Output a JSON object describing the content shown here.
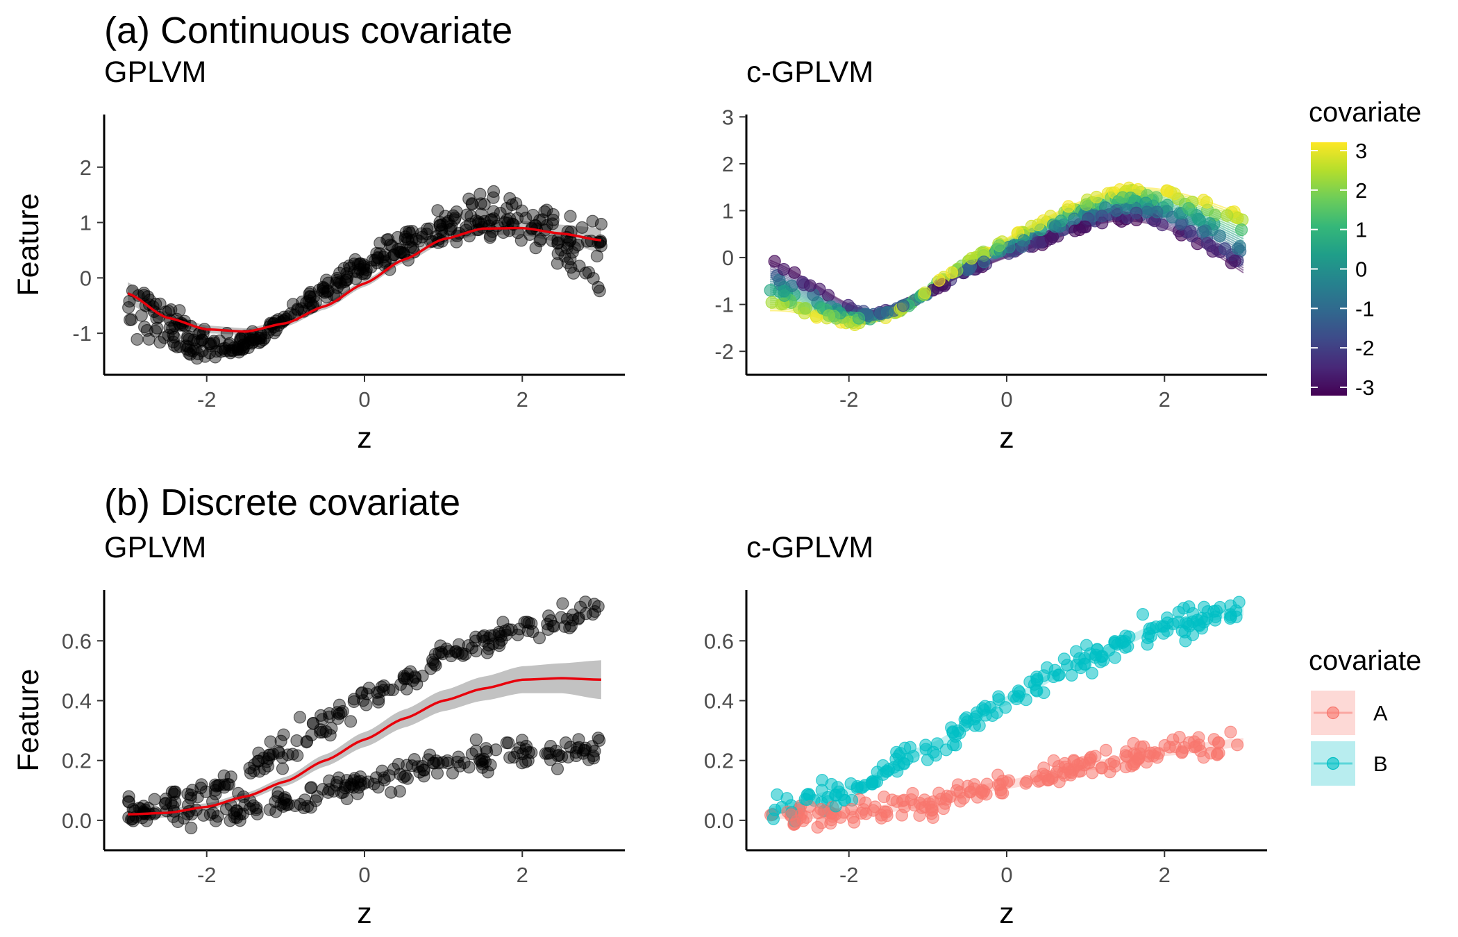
{
  "sections": [
    {
      "title": "(a) Continuous covariate"
    },
    {
      "title": "(b) Discrete covariate"
    }
  ],
  "colors": {
    "points_black": "#000000",
    "fit_red": "#e8000b",
    "ribbon_gray": "#999999",
    "group_A": "#F8766D",
    "group_B": "#00BFC4",
    "viridis": [
      "#440154",
      "#482878",
      "#3E4A89",
      "#31688E",
      "#26828E",
      "#1F9E89",
      "#35B779",
      "#6DCD59",
      "#B4DE2C",
      "#FDE725"
    ]
  },
  "chart_data": [
    {
      "id": "a-gplvm",
      "type": "scatter",
      "title": "GPLVM",
      "xlabel": "z",
      "ylabel": "Feature",
      "xlim": [
        -3.3,
        3.3
      ],
      "ylim": [
        -1.75,
        2.95
      ],
      "xticks": [
        -2,
        0,
        2
      ],
      "yticks": [
        -1,
        0,
        1,
        2
      ],
      "x_range": [
        -3,
        3
      ],
      "n_points": 400,
      "fit_x": [
        -3,
        -2.5,
        -2,
        -1.5,
        -1,
        -0.5,
        0,
        0.5,
        1,
        1.5,
        2,
        2.5,
        3
      ],
      "fit_y": [
        -0.28,
        -0.72,
        -0.93,
        -0.97,
        -0.82,
        -0.51,
        -0.1,
        0.33,
        0.7,
        0.89,
        0.9,
        0.8,
        0.68
      ],
      "ribbon_halfwidth": [
        0.2,
        0.1,
        0.07,
        0.06,
        0.06,
        0.06,
        0.06,
        0.06,
        0.08,
        0.1,
        0.13,
        0.16,
        0.22
      ]
    },
    {
      "id": "a-cgplvm",
      "type": "scatter",
      "title": "c-GPLVM",
      "xlabel": "z",
      "ylabel": "",
      "xlim": [
        -3.3,
        3.3
      ],
      "ylim": [
        -2.5,
        3.05
      ],
      "xticks": [
        -2,
        0,
        2
      ],
      "yticks": [
        -2,
        -1,
        0,
        1,
        2,
        3
      ],
      "x_range": [
        -3,
        3
      ],
      "n_points": 400,
      "color_by": "covariate",
      "covariate_range": [
        -3,
        3
      ],
      "legend": {
        "title": "covariate",
        "ticks": [
          3,
          2,
          1,
          0,
          -1,
          -2,
          -3
        ],
        "placement": "right"
      }
    },
    {
      "id": "b-gplvm",
      "type": "scatter",
      "title": "GPLVM",
      "xlabel": "z",
      "ylabel": "Feature",
      "xlim": [
        -3.3,
        3.3
      ],
      "ylim": [
        -0.1,
        0.77
      ],
      "xticks": [
        -2,
        0,
        2
      ],
      "yticks": [
        0.0,
        0.2,
        0.4,
        0.6
      ],
      "ytick_labels": [
        "0.0",
        "0.2",
        "0.4",
        "0.6"
      ],
      "x_range": [
        -3,
        3
      ],
      "n_points": 400,
      "fit_x": [
        -3,
        -2.5,
        -2,
        -1.5,
        -1,
        -0.5,
        0,
        0.5,
        1,
        1.5,
        2,
        2.5,
        3
      ],
      "fit_y": [
        0.02,
        0.025,
        0.045,
        0.08,
        0.13,
        0.2,
        0.27,
        0.34,
        0.4,
        0.44,
        0.47,
        0.475,
        0.47
      ],
      "ribbon_halfwidth": [
        0.025,
        0.015,
        0.012,
        0.012,
        0.015,
        0.02,
        0.025,
        0.03,
        0.035,
        0.04,
        0.045,
        0.05,
        0.065
      ],
      "group_curves": {
        "A_x": [
          -3,
          -2,
          -1,
          0,
          1,
          2,
          3
        ],
        "A_y": [
          0.02,
          0.02,
          0.06,
          0.12,
          0.18,
          0.23,
          0.26
        ],
        "B_x": [
          -3,
          -2,
          -1,
          0,
          1,
          2,
          3
        ],
        "B_y": [
          0.03,
          0.1,
          0.24,
          0.4,
          0.54,
          0.65,
          0.7
        ]
      }
    },
    {
      "id": "b-cgplvm",
      "type": "scatter",
      "title": "c-GPLVM",
      "xlabel": "z",
      "ylabel": "",
      "xlim": [
        -3.3,
        3.3
      ],
      "ylim": [
        -0.1,
        0.77
      ],
      "xticks": [
        -2,
        0,
        2
      ],
      "yticks": [
        0.0,
        0.2,
        0.4,
        0.6
      ],
      "ytick_labels": [
        "0.0",
        "0.2",
        "0.4",
        "0.6"
      ],
      "x_range": [
        -3,
        3
      ],
      "n_points": 400,
      "color_by": "group",
      "legend": {
        "title": "covariate",
        "entries": [
          "A",
          "B"
        ],
        "placement": "right"
      }
    }
  ]
}
